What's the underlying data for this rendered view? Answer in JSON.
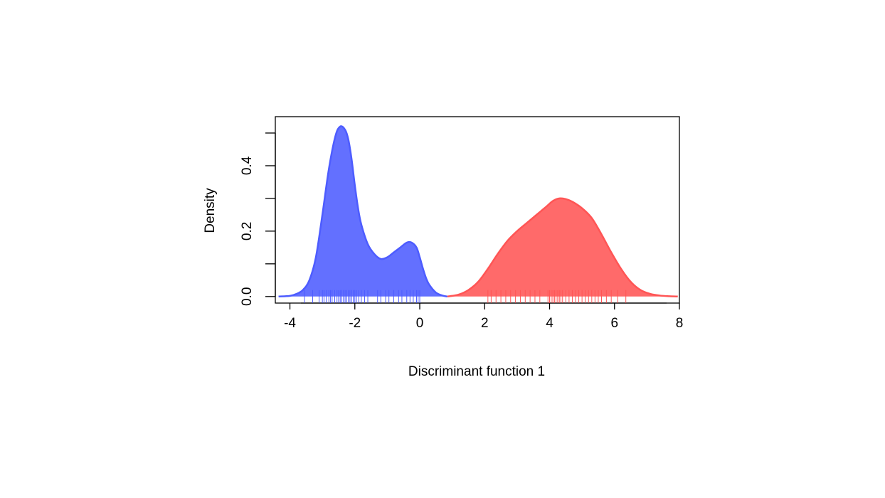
{
  "chart_data": {
    "type": "area",
    "title": "",
    "xlabel": "Discriminant function 1",
    "ylabel": "Density",
    "xlim": [
      -4.45,
      8.0
    ],
    "ylim": [
      -0.02,
      0.55
    ],
    "x_ticks": [
      -4,
      -2,
      0,
      2,
      4,
      6,
      8
    ],
    "x_tick_labels": [
      "-4",
      "-2",
      "0",
      "2",
      "4",
      "6",
      "8"
    ],
    "y_ticks": [
      0.0,
      0.1,
      0.2,
      0.3,
      0.4,
      0.5
    ],
    "y_tick_labels": [
      "0.0",
      "",
      "0.2",
      "",
      "0.4",
      ""
    ],
    "grid": false,
    "series": [
      {
        "color": "#4d5cff",
        "x": [
          -4.35,
          -4.0,
          -3.8,
          -3.6,
          -3.4,
          -3.2,
          -3.0,
          -2.8,
          -2.6,
          -2.45,
          -2.3,
          -2.2,
          -2.1,
          -2.0,
          -1.9,
          -1.8,
          -1.6,
          -1.4,
          -1.2,
          -1.0,
          -0.8,
          -0.6,
          -0.4,
          -0.25,
          -0.1,
          0.0,
          0.1,
          0.2,
          0.3,
          0.5,
          0.7,
          0.85
        ],
        "y": [
          0.0,
          0.002,
          0.008,
          0.02,
          0.05,
          0.12,
          0.25,
          0.39,
          0.49,
          0.52,
          0.51,
          0.48,
          0.42,
          0.34,
          0.27,
          0.22,
          0.16,
          0.13,
          0.115,
          0.12,
          0.135,
          0.15,
          0.165,
          0.165,
          0.15,
          0.12,
          0.085,
          0.055,
          0.035,
          0.012,
          0.003,
          0.0
        ],
        "rug": [
          -3.55,
          -3.3,
          -3.1,
          -3.0,
          -2.95,
          -2.88,
          -2.8,
          -2.75,
          -2.7,
          -2.62,
          -2.55,
          -2.5,
          -2.45,
          -2.4,
          -2.35,
          -2.3,
          -2.25,
          -2.2,
          -2.15,
          -2.1,
          -2.05,
          -2.0,
          -1.95,
          -1.88,
          -1.8,
          -1.7,
          -1.6,
          -1.3,
          -1.2,
          -1.05,
          -0.95,
          -0.8,
          -0.65,
          -0.55,
          -0.4,
          -0.3,
          -0.2,
          -0.1,
          -0.05,
          0.0
        ]
      },
      {
        "color": "#ff5555",
        "x": [
          0.85,
          1.2,
          1.5,
          1.8,
          2.1,
          2.4,
          2.7,
          3.0,
          3.3,
          3.6,
          3.9,
          4.1,
          4.3,
          4.5,
          4.7,
          5.0,
          5.3,
          5.6,
          5.9,
          6.2,
          6.5,
          6.8,
          7.1,
          7.4,
          7.7,
          7.95
        ],
        "y": [
          0.0,
          0.006,
          0.02,
          0.045,
          0.085,
          0.13,
          0.17,
          0.2,
          0.225,
          0.25,
          0.275,
          0.292,
          0.3,
          0.298,
          0.29,
          0.27,
          0.24,
          0.19,
          0.135,
          0.085,
          0.045,
          0.02,
          0.008,
          0.003,
          0.001,
          0.0
        ],
        "rug": [
          2.1,
          2.2,
          2.35,
          2.5,
          2.65,
          2.8,
          2.95,
          3.1,
          3.25,
          3.4,
          3.55,
          3.7,
          3.95,
          4.0,
          4.05,
          4.1,
          4.15,
          4.2,
          4.25,
          4.3,
          4.35,
          4.4,
          4.5,
          4.6,
          4.7,
          4.8,
          4.9,
          5.0,
          5.1,
          5.2,
          5.3,
          5.4,
          5.5,
          5.6,
          5.75,
          5.9,
          6.1,
          6.35
        ]
      }
    ]
  }
}
